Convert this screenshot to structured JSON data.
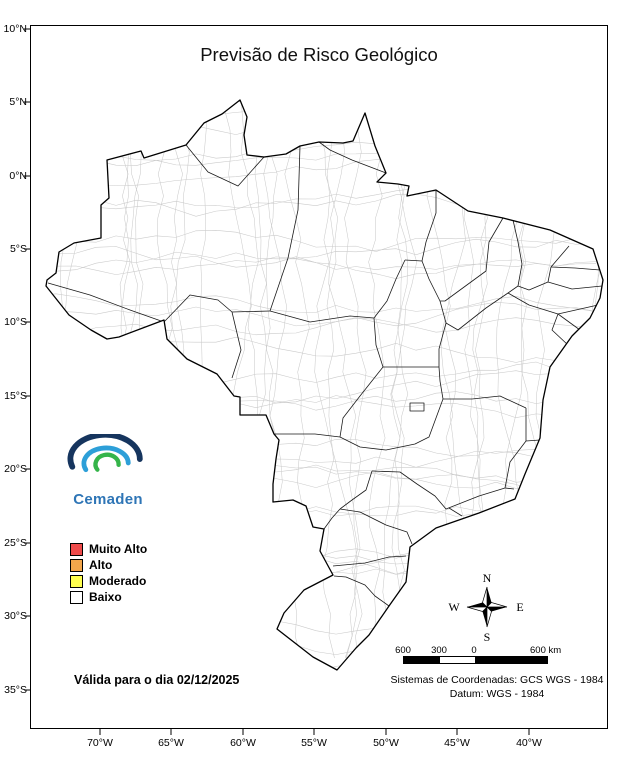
{
  "title": "Previsão de Risco Geológico",
  "axes": {
    "lat": [
      "10°N",
      "5°N",
      "0°N",
      "5°S",
      "10°S",
      "15°S",
      "20°S",
      "25°S",
      "30°S",
      "35°S"
    ],
    "lon": [
      "70°W",
      "65°W",
      "60°W",
      "55°W",
      "50°W",
      "45°W",
      "40°W"
    ]
  },
  "logo": {
    "name": "Cemaden"
  },
  "legend": {
    "items": [
      {
        "label": "Muito Alto",
        "color": "#EE4B4B"
      },
      {
        "label": "Alto",
        "color": "#F3A64B"
      },
      {
        "label": "Moderado",
        "color": "#FFFF4F"
      },
      {
        "label": "Baixo",
        "color": "#FFFFFF"
      }
    ]
  },
  "validity": "Válida para o dia 02/12/2025",
  "compass": {
    "north": "N",
    "south": "S",
    "east": "E",
    "west": "W"
  },
  "scalebar": {
    "left_max": "600",
    "left_mid": "300",
    "zero": "0",
    "right_max": "600 km"
  },
  "footer": {
    "coordinate_system": "Sistemas de Coordenadas: GCS WGS - 1984",
    "datum": "Datum: WGS - 1984"
  }
}
